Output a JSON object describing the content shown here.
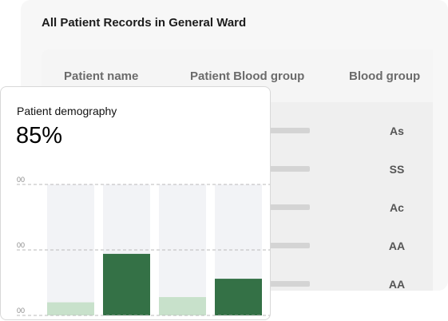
{
  "records": {
    "title": "All Patient Records in General Ward",
    "columns": [
      "Patient name",
      "Patient Blood group",
      "Blood group"
    ],
    "rows": [
      {
        "blood_group": "As"
      },
      {
        "blood_group": "SS"
      },
      {
        "blood_group": "Ac"
      },
      {
        "blood_group": "AA"
      },
      {
        "blood_group": "AA"
      }
    ]
  },
  "demography": {
    "title": "Patient demography",
    "value": "85%"
  },
  "colors": {
    "dark_green": "#347146",
    "light_green": "#c8e1cb",
    "track": "#f2f3f6"
  },
  "chart_data": {
    "type": "bar",
    "tick_labels": [
      "00",
      "00",
      "00"
    ],
    "ylim": [
      0,
      1
    ],
    "grid": true,
    "categories": [
      "",
      "",
      "",
      ""
    ],
    "values": [
      0.1,
      0.47,
      0.14,
      0.28
    ],
    "bar_colors": [
      "#c8e1cb",
      "#347146",
      "#c8e1cb",
      "#347146"
    ]
  }
}
